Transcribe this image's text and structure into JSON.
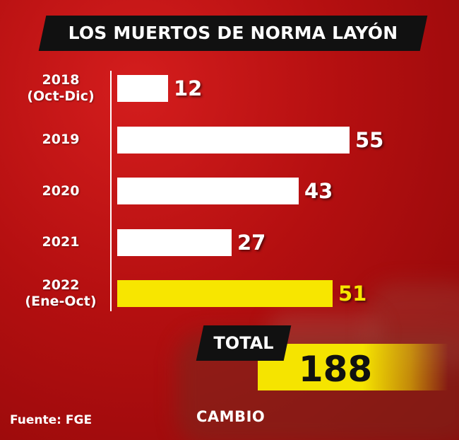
{
  "colors": {
    "bar_default": "#ffffff",
    "bar_highlight": "#f7e600",
    "value_default": "#ffffff",
    "value_highlight": "#f7e600",
    "background": "#b40f10",
    "title_bg": "#111111",
    "total_strip": "#f5e400"
  },
  "chart_data": {
    "type": "bar",
    "orientation": "horizontal",
    "title": "LOS MUERTOS DE NORMA LAYÓN",
    "categories": [
      [
        "2018",
        "(Oct-Dic)"
      ],
      [
        "2019"
      ],
      [
        "2020"
      ],
      [
        "2021"
      ],
      [
        "2022",
        "(Ene-Oct)"
      ]
    ],
    "values": [
      12,
      55,
      43,
      27,
      51
    ],
    "highlight_index": 4,
    "xlim": [
      0,
      55
    ],
    "grid": false
  },
  "total": {
    "label": "TOTAL",
    "value": "188"
  },
  "footer": {
    "source": "Fuente: FGE",
    "logo": "CAMBIO"
  }
}
